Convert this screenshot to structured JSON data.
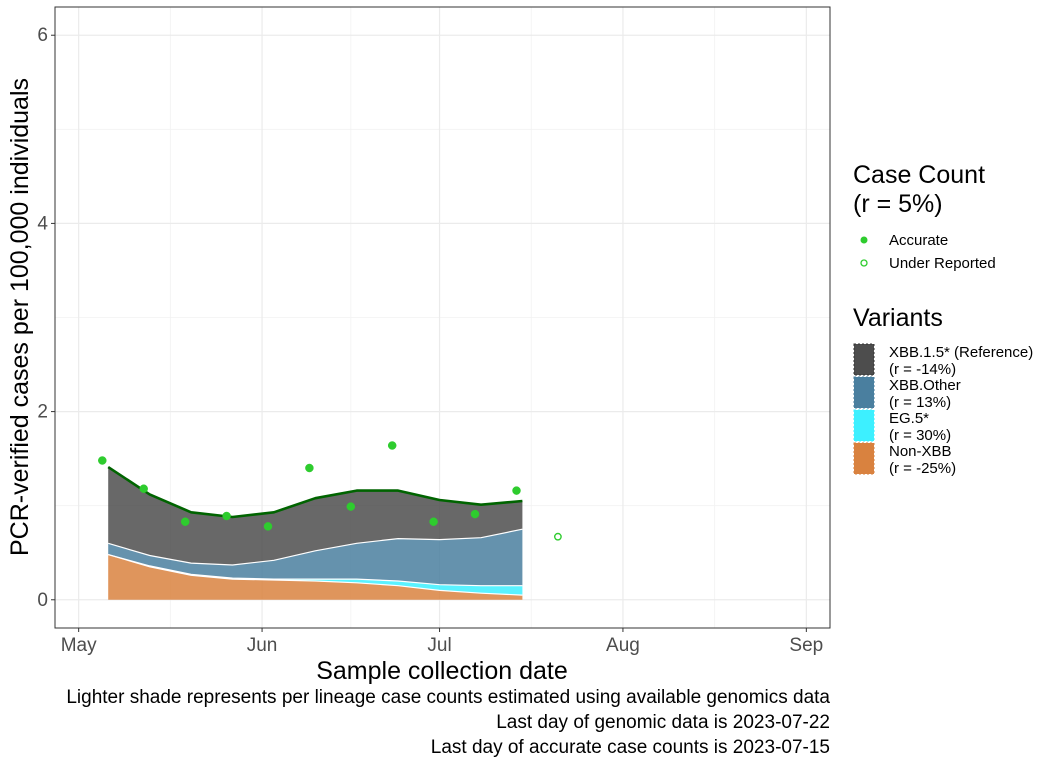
{
  "chart_data": {
    "type": "area",
    "xlabel": "Sample collection date",
    "ylabel": "PCR-verified cases per 100,000 individuals",
    "xlim": [
      "2023-04-27",
      "2023-09-05"
    ],
    "ylim": [
      -0.3,
      6.3
    ],
    "x_ticks": [
      {
        "date": "2023-05-01",
        "label": "May"
      },
      {
        "date": "2023-06-01",
        "label": "Jun"
      },
      {
        "date": "2023-07-01",
        "label": "Jul"
      },
      {
        "date": "2023-08-01",
        "label": "Aug"
      },
      {
        "date": "2023-09-01",
        "label": "Sep"
      }
    ],
    "y_ticks": [
      0,
      2,
      4,
      6
    ],
    "grid": true,
    "legend_position": "right",
    "x": [
      "2023-05-06",
      "2023-05-13",
      "2023-05-20",
      "2023-05-27",
      "2023-06-03",
      "2023-06-10",
      "2023-06-17",
      "2023-06-24",
      "2023-07-01",
      "2023-07-08",
      "2023-07-15"
    ],
    "series": [
      {
        "name": "Non-XBB",
        "color": "#D9823F",
        "values": [
          0.48,
          0.35,
          0.26,
          0.22,
          0.21,
          0.2,
          0.18,
          0.15,
          0.1,
          0.07,
          0.05
        ]
      },
      {
        "name": "EG.5*",
        "color": "#3DF0FF",
        "values": [
          0.0,
          0.01,
          0.01,
          0.01,
          0.01,
          0.02,
          0.04,
          0.05,
          0.06,
          0.08,
          0.1
        ]
      },
      {
        "name": "XBB.Other",
        "color": "#4A7F9F",
        "values": [
          0.12,
          0.11,
          0.12,
          0.14,
          0.2,
          0.3,
          0.38,
          0.45,
          0.48,
          0.51,
          0.6
        ]
      },
      {
        "name": "XBB.1.5* (Reference)",
        "color": "#4D4D4D",
        "values": [
          0.81,
          0.65,
          0.54,
          0.51,
          0.51,
          0.56,
          0.56,
          0.51,
          0.42,
          0.35,
          0.3
        ]
      }
    ],
    "total_line": {
      "color": "#006400",
      "values": [
        1.41,
        1.12,
        0.93,
        0.88,
        0.93,
        1.08,
        1.16,
        1.16,
        1.06,
        1.01,
        1.05
      ]
    },
    "case_points": [
      {
        "date": "2023-05-05",
        "value": 1.48,
        "status": "Accurate"
      },
      {
        "date": "2023-05-12",
        "value": 1.18,
        "status": "Accurate"
      },
      {
        "date": "2023-05-19",
        "value": 0.83,
        "status": "Accurate"
      },
      {
        "date": "2023-05-26",
        "value": 0.89,
        "status": "Accurate"
      },
      {
        "date": "2023-06-02",
        "value": 0.78,
        "status": "Accurate"
      },
      {
        "date": "2023-06-09",
        "value": 1.4,
        "status": "Accurate"
      },
      {
        "date": "2023-06-16",
        "value": 0.99,
        "status": "Accurate"
      },
      {
        "date": "2023-06-23",
        "value": 1.64,
        "status": "Accurate"
      },
      {
        "date": "2023-06-30",
        "value": 0.83,
        "status": "Accurate"
      },
      {
        "date": "2023-07-07",
        "value": 0.91,
        "status": "Accurate"
      },
      {
        "date": "2023-07-14",
        "value": 1.16,
        "status": "Accurate"
      },
      {
        "date": "2023-07-21",
        "value": 0.67,
        "status": "Under Reported"
      }
    ],
    "point_color": "#2ECC2E",
    "legend": {
      "case_count": {
        "title_line1": "Case Count",
        "title_line2": "(r = 5%)",
        "items": [
          {
            "label": "Accurate",
            "shape": "filled-circle"
          },
          {
            "label": "Under Reported",
            "shape": "open-circle"
          }
        ]
      },
      "variants": {
        "title": "Variants",
        "items": [
          {
            "name": "XBB.1.5* (Reference)",
            "rate": "(r = -14%)",
            "color": "#4D4D4D"
          },
          {
            "name": "XBB.Other",
            "rate": "(r = 13%)",
            "color": "#4A7F9F"
          },
          {
            "name": "EG.5*",
            "rate": "(r = 30%)",
            "color": "#3DF0FF"
          },
          {
            "name": "Non-XBB",
            "rate": "(r = -25%)",
            "color": "#D9823F"
          }
        ]
      }
    },
    "caption": [
      "Lighter shade represents per lineage case counts estimated using available genomics data",
      "Last day of genomic data is 2023-07-22",
      "Last day of accurate case counts is 2023-07-15"
    ]
  }
}
